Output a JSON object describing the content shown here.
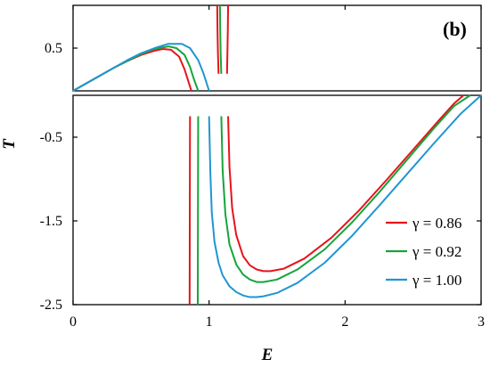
{
  "chart_data": {
    "type": "line",
    "panel_label": "(b)",
    "xlabel": "E",
    "ylabel": "T",
    "xlim": [
      0,
      3
    ],
    "upper_ylim": [
      0,
      1.0
    ],
    "lower_ylim": [
      -2.5,
      0
    ],
    "x_ticks": [
      "0",
      "1",
      "2",
      "3"
    ],
    "x_tick_values": [
      0,
      1,
      2,
      3
    ],
    "y_ticks": [
      "0.5",
      "-0.5",
      "-1.5",
      "-2.5"
    ],
    "y_tick_values": [
      0.5,
      -0.5,
      -1.5,
      -2.5
    ],
    "grid": false,
    "legend_position": "bottom-right",
    "series": [
      {
        "name": "γ = 0.86",
        "color": "#e8131a",
        "upper": {
          "E": [
            0,
            0.1,
            0.2,
            0.3,
            0.4,
            0.5,
            0.6,
            0.66,
            0.72,
            0.78,
            0.82,
            0.85,
            0.87
          ],
          "T": [
            0,
            0.09,
            0.18,
            0.27,
            0.35,
            0.42,
            0.47,
            0.49,
            0.48,
            0.4,
            0.25,
            0.1,
            0.0
          ]
        },
        "pole_upper": {
          "E": [
            1.06,
            1.062,
            1.065,
            1.07
          ],
          "T": [
            1.0,
            0.72,
            0.45,
            0.2
          ]
        },
        "pole_upper_right": {
          "E": [
            1.14,
            1.138,
            1.135,
            1.132
          ],
          "T": [
            1.0,
            0.72,
            0.45,
            0.2
          ]
        },
        "lower_left": {
          "E": [
            0.86,
            0.859,
            0.858,
            0.857
          ],
          "T": [
            -0.25,
            -0.9,
            -1.7,
            -2.5
          ]
        },
        "lower_right": {
          "E": [
            1.14,
            1.15,
            1.17,
            1.2,
            1.25,
            1.3,
            1.35,
            1.4,
            1.45,
            1.55,
            1.7,
            1.9,
            2.1,
            2.3,
            2.5,
            2.7,
            2.8,
            2.87
          ],
          "T": [
            -0.25,
            -0.85,
            -1.35,
            -1.67,
            -1.92,
            -2.03,
            -2.08,
            -2.1,
            -2.1,
            -2.07,
            -1.95,
            -1.7,
            -1.38,
            -1.02,
            -0.65,
            -0.28,
            -0.1,
            0.0
          ]
        }
      },
      {
        "name": "γ = 0.92",
        "color": "#17a43a",
        "upper": {
          "E": [
            0,
            0.1,
            0.2,
            0.3,
            0.4,
            0.5,
            0.6,
            0.7,
            0.76,
            0.82,
            0.86,
            0.89,
            0.92
          ],
          "T": [
            0,
            0.09,
            0.18,
            0.27,
            0.35,
            0.43,
            0.49,
            0.52,
            0.5,
            0.42,
            0.28,
            0.13,
            0.0
          ]
        },
        "pole_upper": {
          "E": [
            1.08,
            1.082,
            1.085,
            1.09
          ],
          "T": [
            1.0,
            0.72,
            0.45,
            0.2
          ]
        },
        "pole_upper_right": null,
        "lower_left": {
          "E": [
            0.92,
            0.919,
            0.918,
            0.917
          ],
          "T": [
            -0.25,
            -0.9,
            -1.7,
            -2.5
          ]
        },
        "lower_right": {
          "E": [
            1.09,
            1.1,
            1.12,
            1.15,
            1.2,
            1.25,
            1.3,
            1.35,
            1.4,
            1.5,
            1.65,
            1.85,
            2.05,
            2.25,
            2.45,
            2.65,
            2.8,
            2.92
          ],
          "T": [
            -0.25,
            -0.9,
            -1.42,
            -1.78,
            -2.02,
            -2.14,
            -2.2,
            -2.23,
            -2.23,
            -2.2,
            -2.08,
            -1.84,
            -1.52,
            -1.16,
            -0.78,
            -0.4,
            -0.13,
            0.0
          ]
        }
      },
      {
        "name": "γ = 1.00",
        "color": "#1f96d2",
        "upper": {
          "E": [
            0,
            0.1,
            0.2,
            0.3,
            0.4,
            0.5,
            0.6,
            0.7,
            0.8,
            0.86,
            0.92,
            0.96,
            1.0
          ],
          "T": [
            0,
            0.09,
            0.18,
            0.27,
            0.36,
            0.44,
            0.5,
            0.55,
            0.55,
            0.5,
            0.36,
            0.2,
            0.0
          ]
        },
        "pole_upper": null,
        "pole_upper_right": null,
        "lower_left": {
          "E": [
            1.0,
            1.01,
            1.02,
            1.04,
            1.07,
            1.1,
            1.15,
            1.2,
            1.25,
            1.3,
            1.35,
            1.4,
            1.5,
            1.65,
            1.85,
            2.05,
            2.25,
            2.45,
            2.65,
            2.85,
            3.0
          ],
          "T": [
            -0.25,
            -0.95,
            -1.4,
            -1.75,
            -2.0,
            -2.15,
            -2.28,
            -2.35,
            -2.39,
            -2.41,
            -2.41,
            -2.4,
            -2.36,
            -2.24,
            -2.0,
            -1.68,
            -1.32,
            -0.95,
            -0.58,
            -0.22,
            0.0
          ]
        },
        "lower_right": null
      }
    ]
  }
}
